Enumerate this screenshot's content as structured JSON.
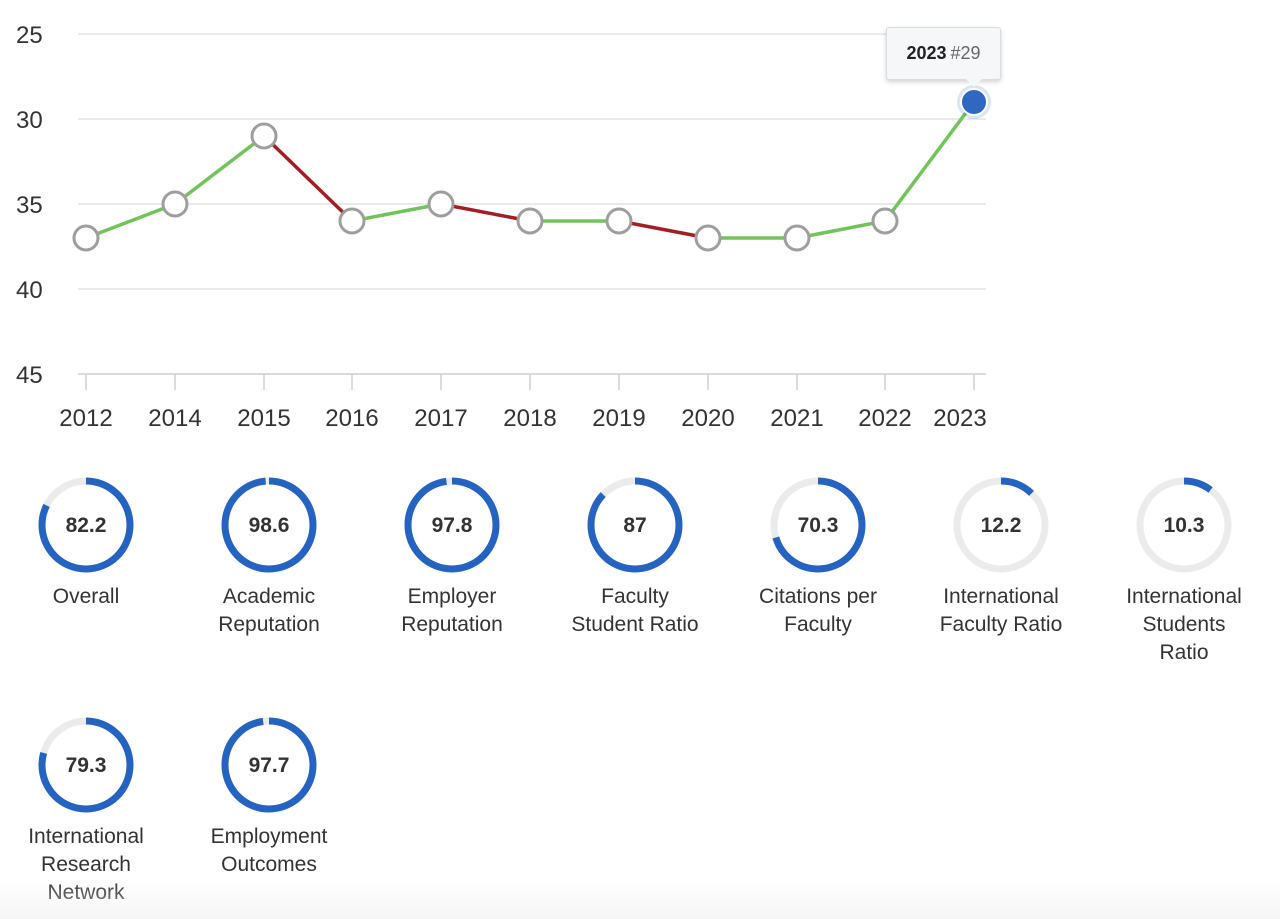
{
  "chart_data": {
    "type": "line",
    "title": "",
    "xlabel": "",
    "ylabel": "",
    "x": [
      "2012",
      "2014",
      "2015",
      "2016",
      "2017",
      "2018",
      "2019",
      "2020",
      "2021",
      "2022",
      "2023"
    ],
    "values": [
      37,
      35,
      31,
      36,
      35,
      36,
      36,
      37,
      37,
      36,
      29
    ],
    "ylim": [
      25,
      45
    ],
    "y_reversed": true,
    "yticks": [
      25,
      30,
      35,
      40,
      45
    ],
    "grid": true,
    "colors": {
      "up": "#72c45a",
      "down": "#a31d24",
      "marker_fill": "#ffffff",
      "marker_stroke": "#9e9e9e",
      "highlight": "#2f67c1"
    },
    "highlight": {
      "year": "2023",
      "rank_label": "#29"
    }
  },
  "metrics": [
    {
      "value": "82.2",
      "score": 82.2,
      "label": [
        "Overall"
      ]
    },
    {
      "value": "98.6",
      "score": 98.6,
      "label": [
        "Academic",
        "Reputation"
      ]
    },
    {
      "value": "97.8",
      "score": 97.8,
      "label": [
        "Employer",
        "Reputation"
      ]
    },
    {
      "value": "87",
      "score": 87,
      "label": [
        "Faculty",
        "Student Ratio"
      ]
    },
    {
      "value": "70.3",
      "score": 70.3,
      "label": [
        "Citations per",
        "Faculty"
      ]
    },
    {
      "value": "12.2",
      "score": 12.2,
      "label": [
        "International",
        "Faculty Ratio"
      ]
    },
    {
      "value": "10.3",
      "score": 10.3,
      "label": [
        "International",
        "Students",
        "Ratio"
      ]
    },
    {
      "value": "79.3",
      "score": 79.3,
      "label": [
        "International",
        "Research",
        "Network"
      ]
    },
    {
      "value": "97.7",
      "score": 97.7,
      "label": [
        "Employment",
        "Outcomes"
      ]
    }
  ],
  "gauge_colors": {
    "fill": "#2563c0",
    "track": "#ebebeb"
  }
}
